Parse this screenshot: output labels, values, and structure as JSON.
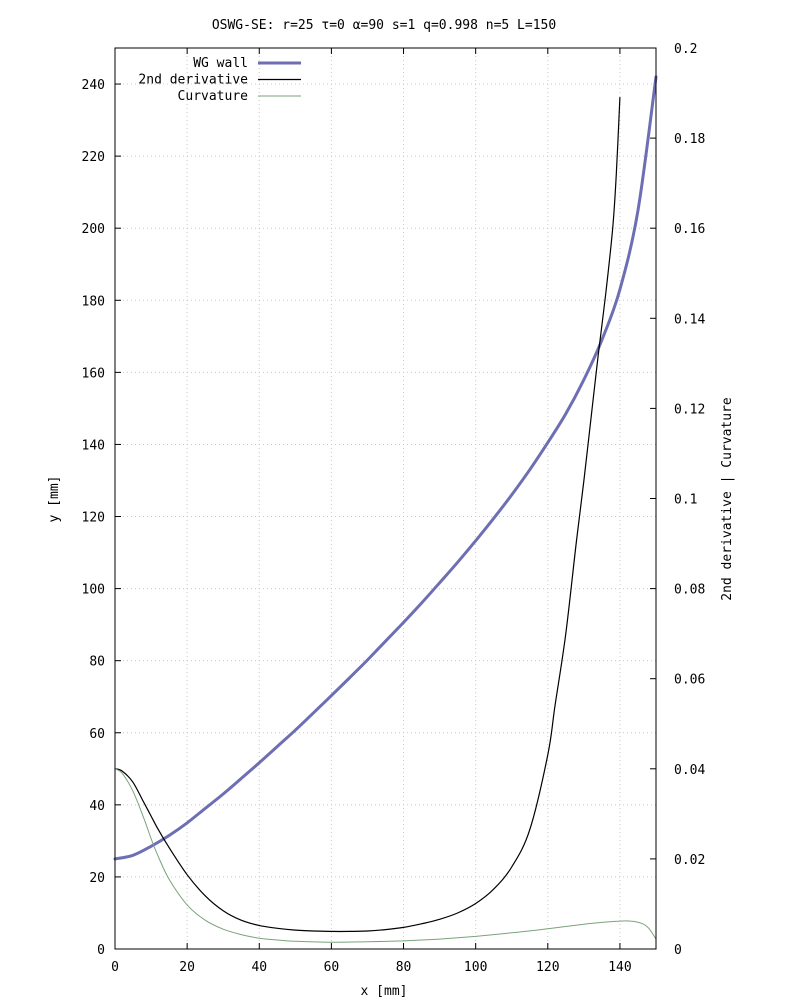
{
  "chart_data": {
    "type": "line",
    "title": "OSWG-SE: r=25 τ=0 α=90 s=1 q=0.998 n=5 L=150",
    "xlabel": "x [mm]",
    "ylabel": "y [mm]",
    "y2label": "2nd derivative | Curvature",
    "xlim": [
      0,
      150
    ],
    "ylim": [
      0,
      250
    ],
    "y2lim": [
      0,
      0.2
    ],
    "x_ticks": [
      0,
      20,
      40,
      60,
      80,
      100,
      120,
      140
    ],
    "y_ticks": [
      0,
      20,
      40,
      60,
      80,
      100,
      120,
      140,
      160,
      180,
      200,
      220,
      240
    ],
    "y2_ticks": [
      0,
      0.02,
      0.04,
      0.06,
      0.08,
      0.1,
      0.12,
      0.14,
      0.16,
      0.18,
      0.2
    ],
    "grid": true,
    "legend_position": "top-left",
    "series": [
      {
        "name": "WG wall",
        "axis": "y",
        "color": "#6e6eb4",
        "x": [
          0,
          5,
          10,
          15,
          20,
          25,
          30,
          35,
          40,
          45,
          50,
          55,
          60,
          65,
          70,
          75,
          80,
          85,
          90,
          95,
          100,
          105,
          110,
          115,
          120,
          125,
          130,
          135,
          140,
          145,
          150
        ],
        "values": [
          25,
          26,
          28.5,
          31.5,
          35,
          39,
          43,
          47.3,
          51.7,
          56.2,
          60.7,
          65.5,
          70.3,
          75.2,
          80.2,
          85.4,
          90.6,
          96,
          101.6,
          107.3,
          113.3,
          119.5,
          126,
          133,
          140.5,
          148.5,
          158,
          169,
          183,
          205,
          242
        ]
      },
      {
        "name": "2nd derivative",
        "axis": "y2",
        "color": "#000000",
        "x": [
          0,
          2,
          5,
          8,
          10,
          12,
          15,
          20,
          25,
          30,
          35,
          40,
          45,
          50,
          55,
          60,
          65,
          70,
          75,
          80,
          85,
          90,
          95,
          100,
          105,
          110,
          115,
          120,
          122,
          125,
          128,
          130,
          132,
          134,
          136,
          138,
          139,
          140
        ],
        "values": [
          0.04,
          0.0395,
          0.037,
          0.0325,
          0.0295,
          0.0265,
          0.0225,
          0.0165,
          0.0118,
          0.0085,
          0.0064,
          0.0052,
          0.0046,
          0.0042,
          0.004,
          0.0039,
          0.0039,
          0.004,
          0.0043,
          0.0048,
          0.0056,
          0.0066,
          0.008,
          0.0101,
          0.0133,
          0.0182,
          0.0265,
          0.0431,
          0.054,
          0.07,
          0.091,
          0.104,
          0.118,
          0.132,
          0.145,
          0.16,
          0.172,
          0.189
        ]
      },
      {
        "name": "Curvature",
        "axis": "y2",
        "color": "#7aa37a",
        "x": [
          0,
          2,
          5,
          8,
          10,
          12,
          15,
          20,
          25,
          30,
          35,
          40,
          45,
          50,
          60,
          70,
          80,
          90,
          100,
          110,
          120,
          130,
          135,
          140,
          143,
          146,
          148,
          150
        ],
        "values": [
          0.04,
          0.039,
          0.035,
          0.029,
          0.0245,
          0.0205,
          0.0155,
          0.0098,
          0.0064,
          0.0044,
          0.0032,
          0.0024,
          0.002,
          0.0017,
          0.0015,
          0.0016,
          0.0018,
          0.0022,
          0.0028,
          0.0036,
          0.0045,
          0.0055,
          0.0059,
          0.0062,
          0.0062,
          0.0057,
          0.0046,
          0.0022
        ]
      }
    ]
  }
}
